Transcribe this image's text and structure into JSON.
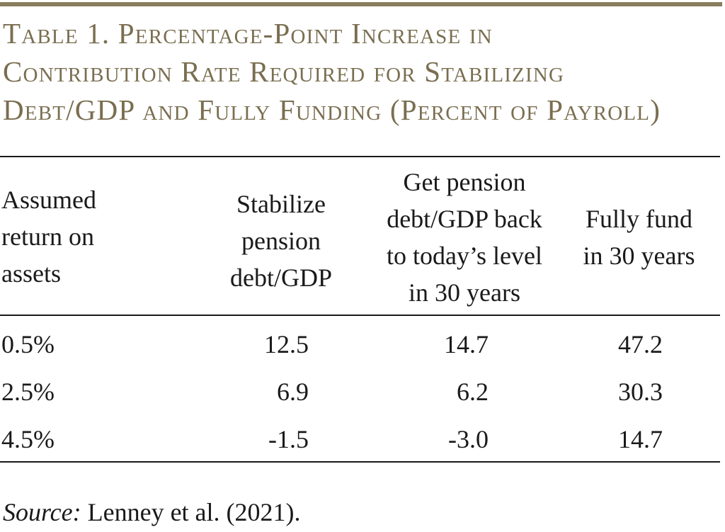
{
  "table": {
    "title_lines": [
      "Table 1. Percentage-Point Increase in",
      "Contribution Rate Required for Stabilizing",
      "Debt/GDP and Fully Funding (Percent of Payroll)"
    ],
    "headers": {
      "col1": [
        "Assumed",
        "return on",
        "assets"
      ],
      "col2": [
        "Stabilize",
        "pension",
        "debt/GDP"
      ],
      "col3": [
        "Get pension",
        "debt/GDP back",
        "to today’s level",
        "in 30 years"
      ],
      "col4": [
        "Fully fund",
        "in 30 years"
      ]
    },
    "rows": [
      {
        "rate": "0.5%",
        "stabilize": "12.5",
        "back_to_today": "14.7",
        "fully_fund": "47.2"
      },
      {
        "rate": "2.5%",
        "stabilize": "6.9",
        "back_to_today": "6.2",
        "fully_fund": "30.3"
      },
      {
        "rate": "4.5%",
        "stabilize": "-1.5",
        "back_to_today": "-3.0",
        "fully_fund": "14.7"
      }
    ],
    "source_label": "Source:",
    "source_text": " Lenney et al. (2021)."
  }
}
